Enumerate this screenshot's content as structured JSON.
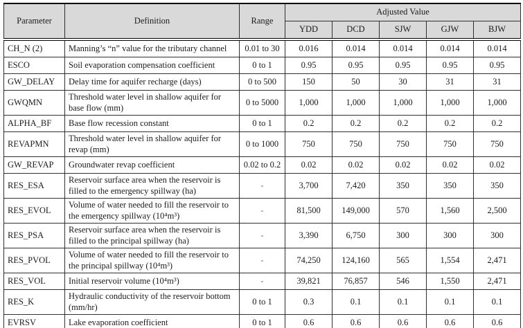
{
  "table": {
    "colors": {
      "header_bg": "#d9d9d9",
      "border": "#2e2e2e",
      "text": "#1b1b1b"
    },
    "headers": {
      "parameter": "Parameter",
      "definition": "Definition",
      "range": "Range",
      "adjusted_value": "Adjusted Value",
      "sites": [
        "YDD",
        "DCD",
        "SJW",
        "GJW",
        "BJW"
      ]
    },
    "rows": [
      {
        "parameter": "CH_N (2)",
        "definition": "Manning’s “n” value for the tributary channel",
        "range": "0.01 to 30",
        "values": [
          "0.016",
          "0.014",
          "0.014",
          "0.014",
          "0.014"
        ]
      },
      {
        "parameter": "ESCO",
        "definition": "Soil evaporation compensation coefficient",
        "range": "0 to 1",
        "values": [
          "0.95",
          "0.95",
          "0.95",
          "0.95",
          "0.95"
        ]
      },
      {
        "parameter": "GW_DELAY",
        "definition": "Delay time for aquifer recharge (days)",
        "range": "0 to 500",
        "values": [
          "150",
          "50",
          "30",
          "31",
          "31"
        ]
      },
      {
        "parameter": "GWQMN",
        "definition": "Threshold water level in shallow aquifer for base flow (mm)",
        "range": "0 to 5000",
        "values": [
          "1,000",
          "1,000",
          "1,000",
          "1,000",
          "1,000"
        ]
      },
      {
        "parameter": "ALPHA_BF",
        "definition": "Base flow recession constant",
        "range": "0 to 1",
        "values": [
          "0.2",
          "0.2",
          "0.2",
          "0.2",
          "0.2"
        ]
      },
      {
        "parameter": "REVAPMN",
        "definition": "Threshold water level in shallow aquifer for revap (mm)",
        "range": "0 to 1000",
        "values": [
          "750",
          "750",
          "750",
          "750",
          "750"
        ]
      },
      {
        "parameter": "GW_REVAP",
        "definition": "Groundwater revap coefficient",
        "range": "0.02 to 0.2",
        "values": [
          "0.02",
          "0.02",
          "0.02",
          "0.02",
          "0.02"
        ]
      },
      {
        "parameter": "RES_ESA",
        "definition": "Reservoir surface area when the reservoir is filled to the emergency spillway (ha)",
        "range": "-",
        "values": [
          "3,700",
          "7,420",
          "350",
          "350",
          "350"
        ]
      },
      {
        "parameter": "RES_EVOL",
        "definition": "Volume of water needed to fill the reservoir to the emergency spillway (10⁴m³)",
        "range": "-",
        "values": [
          "81,500",
          "149,000",
          "570",
          "1,560",
          "2,500"
        ]
      },
      {
        "parameter": "RES_PSA",
        "definition": "Reservoir surface area when the reservoir is filled to the principal spillway (ha)",
        "range": "-",
        "values": [
          "3,390",
          "6,750",
          "300",
          "300",
          "300"
        ]
      },
      {
        "parameter": "RES_PVOL",
        "definition": "Volume of water needed to fill the reservoir to the principal spillway (10⁴m³)",
        "range": "-",
        "values": [
          "74,250",
          "124,160",
          "565",
          "1,554",
          "2,471"
        ]
      },
      {
        "parameter": "RES_VOL",
        "definition": "Initial reservoir volume (10⁴m³)",
        "range": "-",
        "values": [
          "39,821",
          "76,857",
          "546",
          "1,550",
          "2,471"
        ]
      },
      {
        "parameter": "RES_K",
        "definition": "Hydraulic conductivity of the reservoir bottom (mm/hr)",
        "range": "0 to 1",
        "values": [
          "0.3",
          "0.1",
          "0.1",
          "0.1",
          "0.1"
        ]
      },
      {
        "parameter": "EVRSV",
        "definition": "Lake evaporation coefficient",
        "range": "0 to 1",
        "values": [
          "0.6",
          "0.6",
          "0.6",
          "0.6",
          "0.6"
        ]
      }
    ]
  }
}
